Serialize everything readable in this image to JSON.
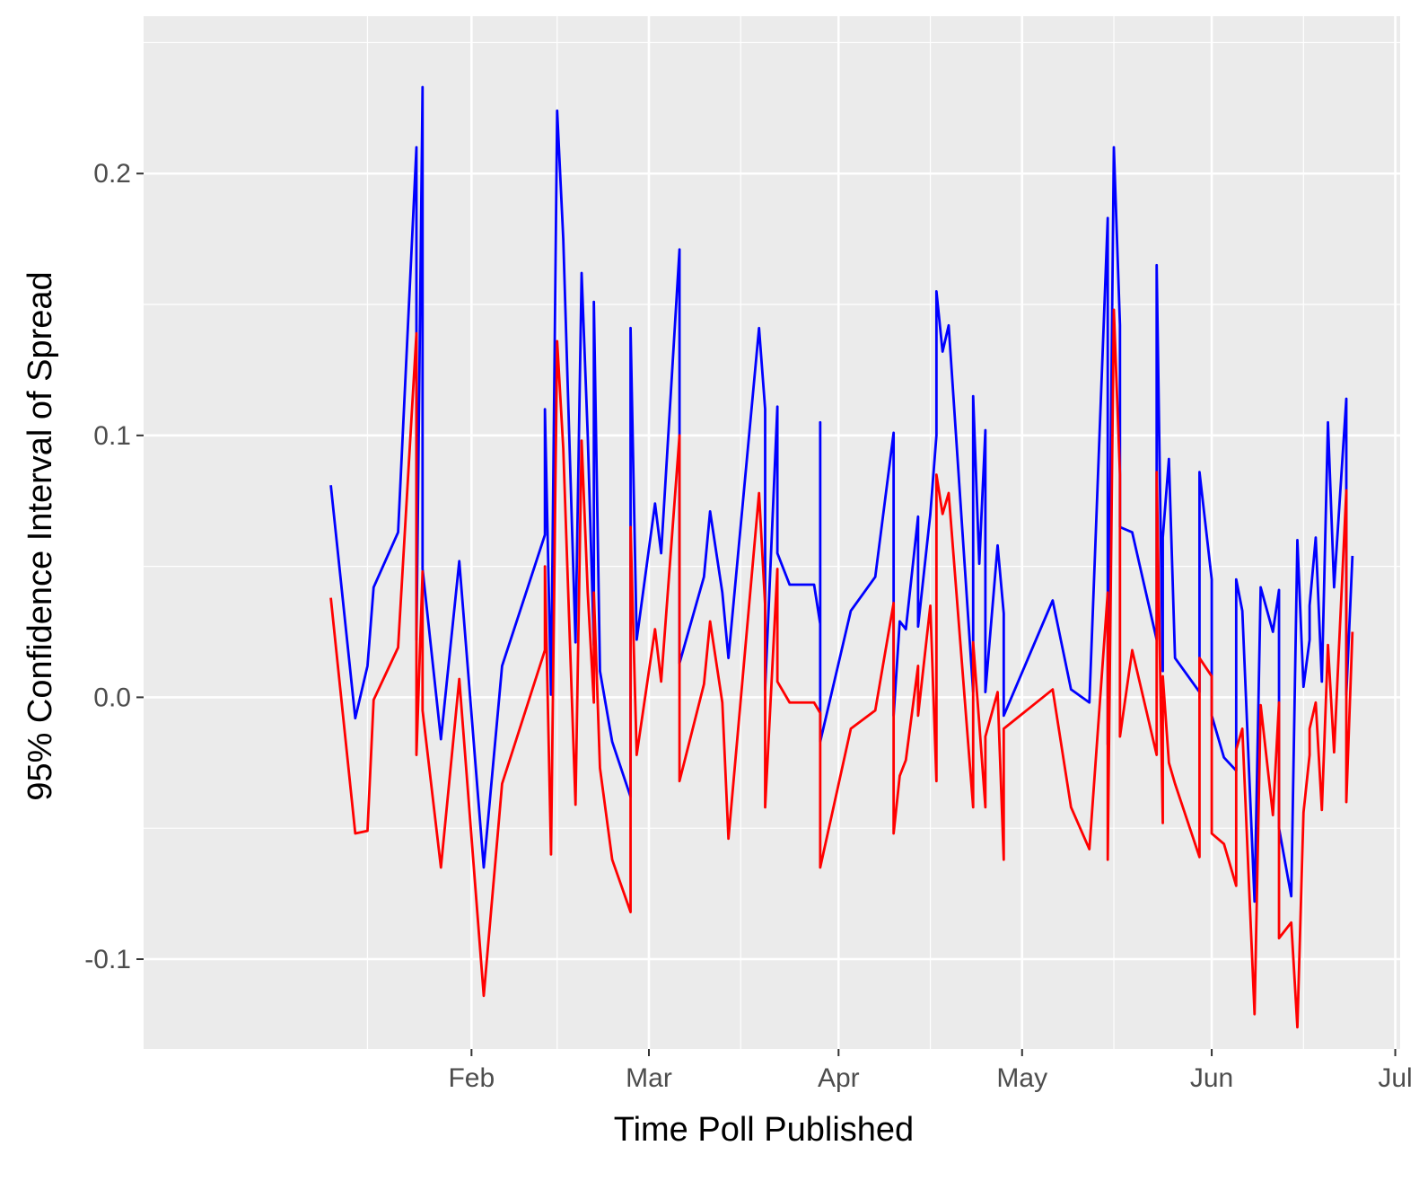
{
  "chart_data": {
    "type": "line",
    "xlabel": "Time Poll Published",
    "ylabel": "95% Confidence Interval of Spread",
    "x_axis": {
      "min": "2016-01-01",
      "max": "2016-07-01",
      "tick_values": [
        "2016-02-01",
        "2016-03-01",
        "2016-04-01",
        "2016-05-01",
        "2016-06-01",
        "2016-07-01"
      ],
      "tick_labels": [
        "Feb",
        "Mar",
        "Apr",
        "May",
        "Jun",
        "Jul"
      ],
      "minor_values": [
        "2016-01-15",
        "2016-02-15",
        "2016-03-16",
        "2016-04-16",
        "2016-05-16",
        "2016-06-16"
      ]
    },
    "y_axis": {
      "min": -0.15,
      "max": 0.25,
      "tick_values": [
        -0.1,
        0.0,
        0.1,
        0.2
      ],
      "tick_labels": [
        "-0.1",
        "0.0",
        "0.1",
        "0.2"
      ],
      "minor_values": [
        -0.15,
        -0.05,
        0.05,
        0.15,
        0.25
      ]
    },
    "grid": true,
    "legend": "none",
    "background": "#ebebeb",
    "gridline_color": "#ffffff",
    "series": [
      {
        "color": "#0000ff",
        "points": [
          [
            "2016-01-09",
            0.081
          ],
          [
            "2016-01-13",
            -0.008
          ],
          [
            "2016-01-15",
            0.012
          ],
          [
            "2016-01-16",
            0.042
          ],
          [
            "2016-01-20",
            0.063
          ],
          [
            "2016-01-23",
            0.21
          ],
          [
            "2016-01-23",
            0.022
          ],
          [
            "2016-01-24",
            0.233
          ],
          [
            "2016-01-24",
            0.049
          ],
          [
            "2016-01-27",
            -0.016
          ],
          [
            "2016-01-30",
            0.052
          ],
          [
            "2016-02-03",
            -0.065
          ],
          [
            "2016-02-06",
            0.012
          ],
          [
            "2016-02-13",
            0.062
          ],
          [
            "2016-02-13",
            0.11
          ],
          [
            "2016-02-14",
            0.001
          ],
          [
            "2016-02-15",
            0.224
          ],
          [
            "2016-02-16",
            0.175
          ],
          [
            "2016-02-18",
            0.021
          ],
          [
            "2016-02-19",
            0.162
          ],
          [
            "2016-02-20",
            0.1
          ],
          [
            "2016-02-21",
            0.02
          ],
          [
            "2016-02-21",
            0.151
          ],
          [
            "2016-02-22",
            0.01
          ],
          [
            "2016-02-24",
            -0.017
          ],
          [
            "2016-02-27",
            -0.038
          ],
          [
            "2016-02-27",
            0.141
          ],
          [
            "2016-02-28",
            0.022
          ],
          [
            "2016-03-02",
            0.074
          ],
          [
            "2016-03-03",
            0.055
          ],
          [
            "2016-03-06",
            0.171
          ],
          [
            "2016-03-06",
            0.013
          ],
          [
            "2016-03-10",
            0.046
          ],
          [
            "2016-03-11",
            0.071
          ],
          [
            "2016-03-13",
            0.04
          ],
          [
            "2016-03-14",
            0.015
          ],
          [
            "2016-03-19",
            0.141
          ],
          [
            "2016-03-20",
            0.11
          ],
          [
            "2016-03-20",
            0.003
          ],
          [
            "2016-03-22",
            0.111
          ],
          [
            "2016-03-22",
            0.055
          ],
          [
            "2016-03-24",
            0.043
          ],
          [
            "2016-03-28",
            0.043
          ],
          [
            "2016-03-29",
            0.028
          ],
          [
            "2016-03-29",
            0.105
          ],
          [
            "2016-03-29",
            -0.017
          ],
          [
            "2016-04-03",
            0.033
          ],
          [
            "2016-04-07",
            0.046
          ],
          [
            "2016-04-10",
            0.101
          ],
          [
            "2016-04-10",
            -0.007
          ],
          [
            "2016-04-11",
            0.029
          ],
          [
            "2016-04-12",
            0.026
          ],
          [
            "2016-04-14",
            0.069
          ],
          [
            "2016-04-14",
            0.027
          ],
          [
            "2016-04-16",
            0.07
          ],
          [
            "2016-04-17",
            0.1
          ],
          [
            "2016-04-17",
            0.155
          ],
          [
            "2016-04-18",
            0.132
          ],
          [
            "2016-04-19",
            0.142
          ],
          [
            "2016-04-23",
            0.002
          ],
          [
            "2016-04-23",
            0.115
          ],
          [
            "2016-04-24",
            0.051
          ],
          [
            "2016-04-25",
            0.102
          ],
          [
            "2016-04-25",
            0.002
          ],
          [
            "2016-04-27",
            0.058
          ],
          [
            "2016-04-28",
            0.032
          ],
          [
            "2016-04-28",
            -0.007
          ],
          [
            "2016-05-06",
            0.037
          ],
          [
            "2016-05-09",
            0.003
          ],
          [
            "2016-05-12",
            -0.002
          ],
          [
            "2016-05-15",
            0.183
          ],
          [
            "2016-05-15",
            -0.018
          ],
          [
            "2016-05-16",
            0.21
          ],
          [
            "2016-05-17",
            0.142
          ],
          [
            "2016-05-17",
            0.065
          ],
          [
            "2016-05-19",
            0.063
          ],
          [
            "2016-05-23",
            0.022
          ],
          [
            "2016-05-23",
            0.165
          ],
          [
            "2016-05-24",
            0.01
          ],
          [
            "2016-05-24",
            0.061
          ],
          [
            "2016-05-25",
            0.091
          ],
          [
            "2016-05-26",
            0.015
          ],
          [
            "2016-05-30",
            0.002
          ],
          [
            "2016-05-30",
            0.086
          ],
          [
            "2016-06-01",
            0.045
          ],
          [
            "2016-06-01",
            -0.007
          ],
          [
            "2016-06-03",
            -0.023
          ],
          [
            "2016-06-05",
            -0.028
          ],
          [
            "2016-06-05",
            0.045
          ],
          [
            "2016-06-06",
            0.033
          ],
          [
            "2016-06-08",
            -0.078
          ],
          [
            "2016-06-09",
            0.042
          ],
          [
            "2016-06-11",
            0.025
          ],
          [
            "2016-06-12",
            0.041
          ],
          [
            "2016-06-12",
            -0.05
          ],
          [
            "2016-06-14",
            -0.076
          ],
          [
            "2016-06-15",
            0.06
          ],
          [
            "2016-06-16",
            0.004
          ],
          [
            "2016-06-17",
            0.022
          ],
          [
            "2016-06-17",
            0.035
          ],
          [
            "2016-06-18",
            0.061
          ],
          [
            "2016-06-19",
            0.006
          ],
          [
            "2016-06-20",
            0.105
          ],
          [
            "2016-06-21",
            0.042
          ],
          [
            "2016-06-23",
            0.114
          ],
          [
            "2016-06-23",
            0.001
          ],
          [
            "2016-06-24",
            0.054
          ]
        ]
      },
      {
        "color": "#ff0000",
        "points": [
          [
            "2016-01-09",
            0.038
          ],
          [
            "2016-01-13",
            -0.052
          ],
          [
            "2016-01-15",
            -0.051
          ],
          [
            "2016-01-16",
            -0.001
          ],
          [
            "2016-01-20",
            0.019
          ],
          [
            "2016-01-23",
            0.139
          ],
          [
            "2016-01-23",
            -0.022
          ],
          [
            "2016-01-24",
            0.048
          ],
          [
            "2016-01-24",
            -0.005
          ],
          [
            "2016-01-27",
            -0.065
          ],
          [
            "2016-01-30",
            0.007
          ],
          [
            "2016-02-03",
            -0.114
          ],
          [
            "2016-02-06",
            -0.033
          ],
          [
            "2016-02-13",
            0.018
          ],
          [
            "2016-02-13",
            0.05
          ],
          [
            "2016-02-14",
            -0.06
          ],
          [
            "2016-02-15",
            0.136
          ],
          [
            "2016-02-16",
            0.095
          ],
          [
            "2016-02-18",
            -0.041
          ],
          [
            "2016-02-19",
            0.098
          ],
          [
            "2016-02-20",
            0.04
          ],
          [
            "2016-02-21",
            -0.002
          ],
          [
            "2016-02-21",
            0.04
          ],
          [
            "2016-02-22",
            -0.027
          ],
          [
            "2016-02-24",
            -0.062
          ],
          [
            "2016-02-27",
            -0.082
          ],
          [
            "2016-02-27",
            0.065
          ],
          [
            "2016-02-28",
            -0.022
          ],
          [
            "2016-03-02",
            0.026
          ],
          [
            "2016-03-03",
            0.006
          ],
          [
            "2016-03-06",
            0.1
          ],
          [
            "2016-03-06",
            -0.032
          ],
          [
            "2016-03-10",
            0.005
          ],
          [
            "2016-03-11",
            0.029
          ],
          [
            "2016-03-13",
            -0.002
          ],
          [
            "2016-03-14",
            -0.054
          ],
          [
            "2016-03-19",
            0.078
          ],
          [
            "2016-03-20",
            0.035
          ],
          [
            "2016-03-20",
            -0.042
          ],
          [
            "2016-03-22",
            0.049
          ],
          [
            "2016-03-22",
            0.006
          ],
          [
            "2016-03-24",
            -0.002
          ],
          [
            "2016-03-28",
            -0.002
          ],
          [
            "2016-03-29",
            -0.006
          ],
          [
            "2016-03-29",
            -0.017
          ],
          [
            "2016-03-29",
            -0.065
          ],
          [
            "2016-04-03",
            -0.012
          ],
          [
            "2016-04-07",
            -0.005
          ],
          [
            "2016-04-10",
            0.036
          ],
          [
            "2016-04-10",
            -0.052
          ],
          [
            "2016-04-11",
            -0.03
          ],
          [
            "2016-04-12",
            -0.024
          ],
          [
            "2016-04-14",
            0.012
          ],
          [
            "2016-04-14",
            -0.007
          ],
          [
            "2016-04-16",
            0.035
          ],
          [
            "2016-04-17",
            -0.032
          ],
          [
            "2016-04-17",
            0.085
          ],
          [
            "2016-04-18",
            0.07
          ],
          [
            "2016-04-19",
            0.078
          ],
          [
            "2016-04-23",
            -0.042
          ],
          [
            "2016-04-23",
            0.021
          ],
          [
            "2016-04-24",
            -0.01
          ],
          [
            "2016-04-25",
            -0.042
          ],
          [
            "2016-04-25",
            -0.015
          ],
          [
            "2016-04-27",
            0.002
          ],
          [
            "2016-04-28",
            -0.062
          ],
          [
            "2016-04-28",
            -0.012
          ],
          [
            "2016-05-06",
            0.003
          ],
          [
            "2016-05-09",
            -0.042
          ],
          [
            "2016-05-12",
            -0.058
          ],
          [
            "2016-05-15",
            0.04
          ],
          [
            "2016-05-15",
            -0.062
          ],
          [
            "2016-05-16",
            0.148
          ],
          [
            "2016-05-17",
            0.085
          ],
          [
            "2016-05-17",
            -0.015
          ],
          [
            "2016-05-19",
            0.018
          ],
          [
            "2016-05-23",
            -0.022
          ],
          [
            "2016-05-23",
            0.086
          ],
          [
            "2016-05-24",
            -0.048
          ],
          [
            "2016-05-24",
            0.008
          ],
          [
            "2016-05-25",
            -0.025
          ],
          [
            "2016-05-26",
            -0.033
          ],
          [
            "2016-05-30",
            -0.061
          ],
          [
            "2016-05-30",
            0.015
          ],
          [
            "2016-06-01",
            0.008
          ],
          [
            "2016-06-01",
            -0.052
          ],
          [
            "2016-06-03",
            -0.056
          ],
          [
            "2016-06-05",
            -0.072
          ],
          [
            "2016-06-05",
            -0.02
          ],
          [
            "2016-06-06",
            -0.012
          ],
          [
            "2016-06-08",
            -0.121
          ],
          [
            "2016-06-09",
            -0.003
          ],
          [
            "2016-06-11",
            -0.045
          ],
          [
            "2016-06-12",
            -0.002
          ],
          [
            "2016-06-12",
            -0.092
          ],
          [
            "2016-06-14",
            -0.086
          ],
          [
            "2016-06-15",
            -0.126
          ],
          [
            "2016-06-16",
            -0.044
          ],
          [
            "2016-06-17",
            -0.022
          ],
          [
            "2016-06-17",
            -0.012
          ],
          [
            "2016-06-18",
            -0.002
          ],
          [
            "2016-06-19",
            -0.043
          ],
          [
            "2016-06-20",
            0.02
          ],
          [
            "2016-06-21",
            -0.021
          ],
          [
            "2016-06-23",
            0.079
          ],
          [
            "2016-06-23",
            -0.04
          ],
          [
            "2016-06-24",
            0.025
          ]
        ]
      }
    ]
  }
}
